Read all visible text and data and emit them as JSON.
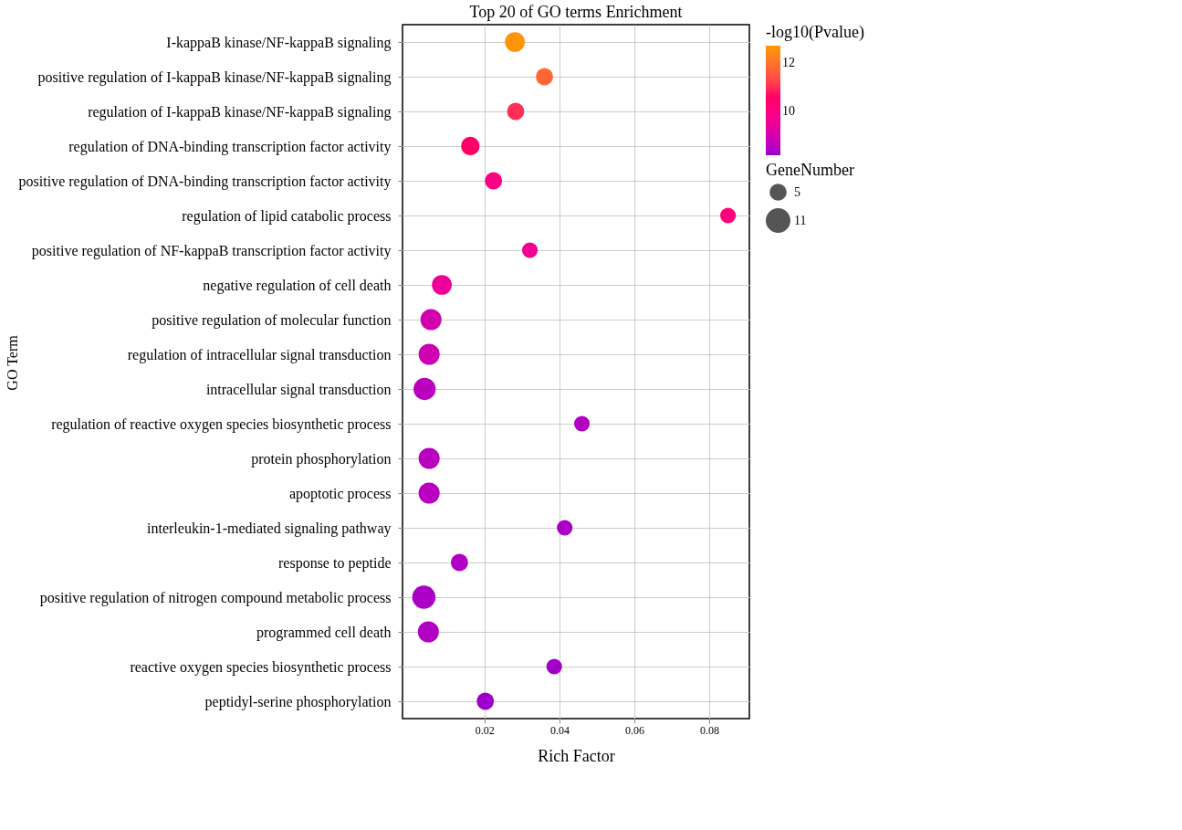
{
  "chart_data": {
    "type": "bubble",
    "orientation": "horizontal",
    "title": "Top 20 of GO terms Enrichment",
    "xlabel": "Rich Factor",
    "ylabel": "GO Term",
    "legend_title": "GeneNumber",
    "clabel": "-log10(Pvalue)",
    "categories": [
      "I-kappaB kinase/NF-kappaB signaling",
      "positive regulation of I-kappaB kinase/NF-kappaB signaling",
      "regulation of I-kappaB kinase/NF-kappaB signaling",
      "regulation of DNA-binding transcription factor activity",
      "positive regulation of DNA-binding transcription factor activity",
      "regulation of lipid catabolic process",
      "positive regulation of NF-kappaB transcription factor activity",
      "negative regulation of cell death",
      "positive regulation of molecular function",
      "regulation of intracellular signal transduction",
      "intracellular signal transduction",
      "regulation of reactive oxygen species biosynthetic process",
      "protein phosphorylation",
      "apoptotic process",
      "interleukin-1-mediated signaling pathway",
      "response to peptide",
      "positive regulation of nitrogen compound metabolic process",
      "programmed cell death",
      "reactive oxygen species biosynthetic process",
      "peptidyl-serine phosphorylation"
    ],
    "values": [
      0.0281,
      0.036,
      0.0283,
      0.0162,
      0.0224,
      0.085,
      0.0321,
      0.0086,
      0.0057,
      0.0052,
      0.004,
      0.046,
      0.0052,
      0.0052,
      0.0414,
      0.0133,
      0.0038,
      0.005,
      0.0386,
      0.0202
    ],
    "sizes": [
      8,
      6,
      6,
      7,
      6,
      5,
      5,
      8,
      9,
      9,
      10,
      5,
      9,
      9,
      5,
      6,
      11,
      9,
      5,
      6
    ],
    "size_legend": [
      5,
      11
    ],
    "cvalues": [
      12.6,
      11.8,
      11.0,
      10.6,
      10.0,
      10.2,
      9.6,
      9.5,
      9.0,
      8.9,
      8.6,
      8.5,
      8.6,
      8.6,
      8.4,
      8.5,
      8.4,
      8.5,
      8.3,
      8.25
    ],
    "clim": [
      8.2,
      12.7
    ],
    "cticks": [
      10,
      12
    ],
    "xlim": [
      -0.0019,
      0.0907
    ],
    "xticks": [
      0.02,
      0.04,
      0.06,
      0.08
    ],
    "grid": true
  }
}
